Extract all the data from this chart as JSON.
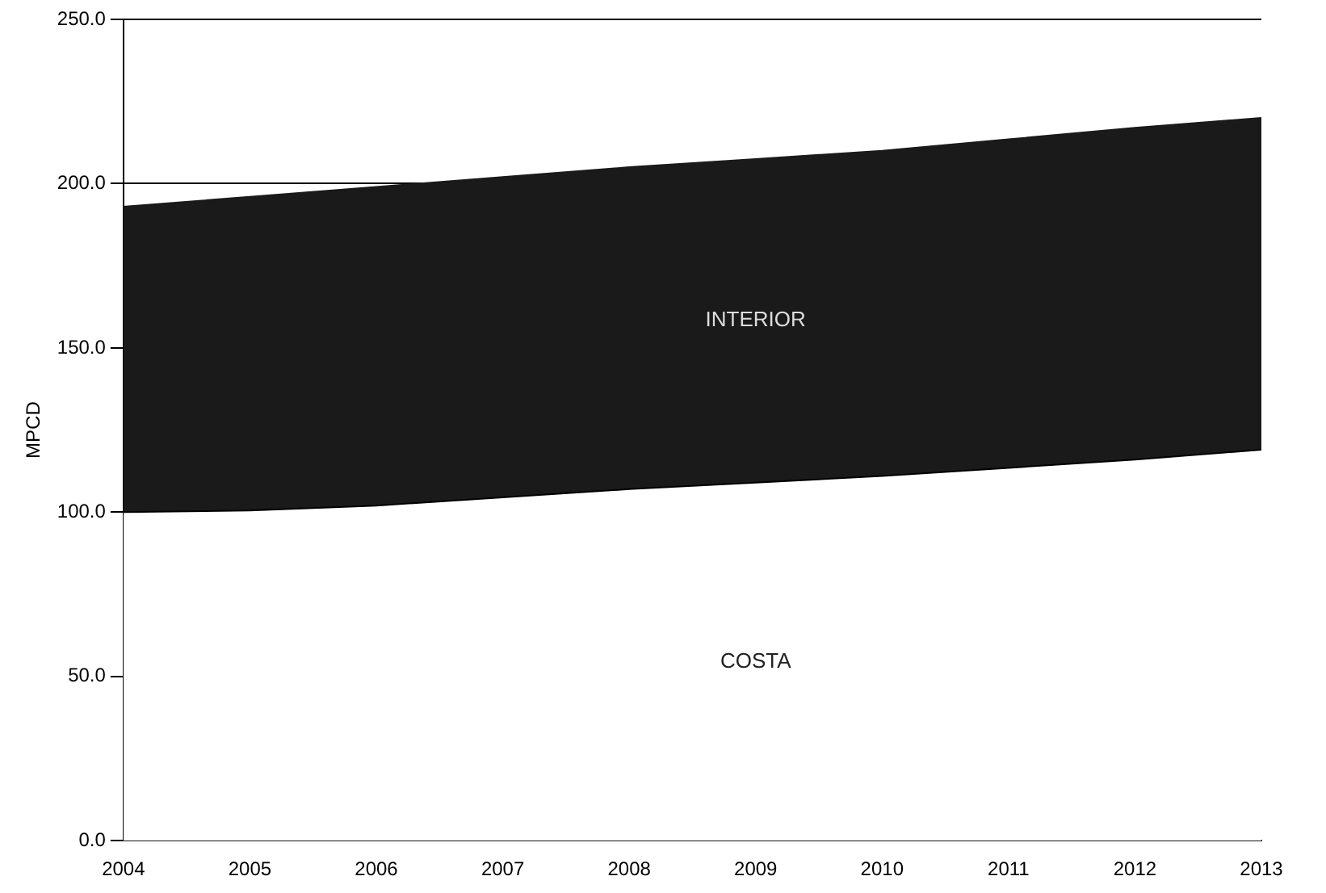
{
  "chart_data": {
    "type": "area",
    "stacked": true,
    "ylabel": "MPCD",
    "x": [
      2004,
      2005,
      2006,
      2007,
      2008,
      2009,
      2010,
      2011,
      2012,
      2013
    ],
    "series": [
      {
        "name": "COSTA",
        "color": "#ffffff",
        "values": [
          100,
          100.5,
          102,
          104.5,
          107,
          109,
          111,
          113.5,
          116,
          119
        ]
      },
      {
        "name": "INTERIOR",
        "color": "#1a1a1a",
        "values": [
          93,
          95.5,
          97,
          97.5,
          98,
          98.5,
          99,
          100,
          101,
          101
        ]
      }
    ],
    "xlim": [
      2004,
      2013
    ],
    "xticks": [
      2004,
      2005,
      2006,
      2007,
      2008,
      2009,
      2010,
      2011,
      2012,
      2013
    ],
    "ylim": [
      0,
      250
    ],
    "yticks": [
      {
        "value": 0,
        "label": "0.0"
      },
      {
        "value": 50,
        "label": "50.0"
      },
      {
        "value": 100,
        "label": "100.0"
      },
      {
        "value": 150,
        "label": "150.0"
      },
      {
        "value": 200,
        "label": "200.0"
      },
      {
        "value": 250,
        "label": "250.0"
      }
    ],
    "grid": "y",
    "legend": false
  }
}
